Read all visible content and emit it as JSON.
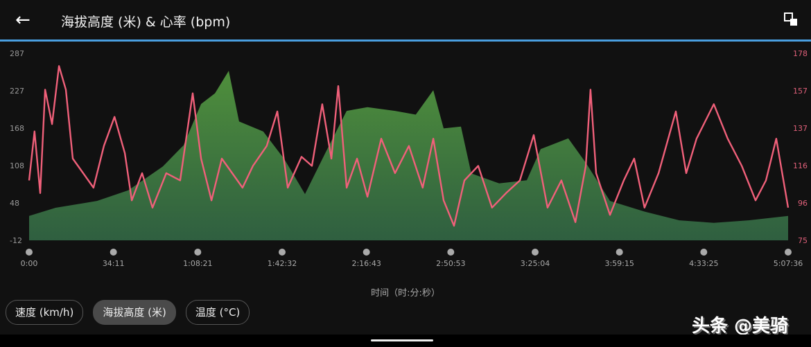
{
  "header": {
    "title": "海拔高度 (米) & 心率 (bpm)",
    "back_icon": "arrow-left",
    "expand_icon": "expand"
  },
  "colors": {
    "accent": "#4a9fe0",
    "heart_rate": "#f0607a",
    "elevation_top": "#4f8f3c",
    "elevation_bottom": "#2f5f40"
  },
  "chart_data": {
    "type": "area",
    "title": "海拔高度 (米) & 心率 (bpm)",
    "xlabel": "时间（时:分:秒）",
    "x_unit": "minutes",
    "xlim": [
      0,
      307.6
    ],
    "x_ticks": [
      "0:00",
      "34:11",
      "1:08:21",
      "1:42:32",
      "2:16:43",
      "2:50:53",
      "3:25:04",
      "3:59:15",
      "4:33:25",
      "5:07:36"
    ],
    "y_left": {
      "label": "海拔高度 (米)",
      "ticks": [
        "287",
        "227",
        "168",
        "108",
        "48",
        "-12"
      ],
      "ylim": [
        -12,
        287
      ]
    },
    "y_right": {
      "label": "心率 (bpm)",
      "ticks": [
        "178",
        "157",
        "137",
        "116",
        "96",
        "75"
      ],
      "ylim": [
        75,
        178
      ]
    },
    "grid": false,
    "series": [
      {
        "name": "海拔高度 (米)",
        "type": "area",
        "axis": "left",
        "x": [
          0,
          10.7,
          27.5,
          40.2,
          54.2,
          62.6,
          69.7,
          75.3,
          80.9,
          85.1,
          94.9,
          103.4,
          111.8,
          120.2,
          128.7,
          137.1,
          148.3,
          156.7,
          163.8,
          168,
          175,
          179.2,
          190.5,
          201.7,
          207.3,
          218.5,
          225.6,
          235.4,
          249.4,
          263.5,
          277.5,
          291.6,
          307.6
        ],
        "y": [
          27,
          40,
          51,
          68,
          106,
          140,
          206,
          223,
          259,
          178,
          162,
          118,
          62,
          129,
          195,
          201,
          195,
          189,
          228,
          167,
          170,
          95,
          79,
          84,
          134,
          151,
          112,
          51,
          34,
          20,
          16,
          20,
          27
        ]
      },
      {
        "name": "心率 (bpm)",
        "type": "line",
        "axis": "right",
        "x": [
          0,
          2.2,
          4.5,
          6.5,
          9.3,
          12.1,
          14.9,
          17.7,
          21.9,
          26.1,
          30.3,
          34.6,
          38.8,
          41.6,
          45.8,
          50,
          55.6,
          61.2,
          66.3,
          69.7,
          73.9,
          78.1,
          82.3,
          86.5,
          90.7,
          96.3,
          100.6,
          104.8,
          110.4,
          114.6,
          118.8,
          122.5,
          125.3,
          128.7,
          132.9,
          137.1,
          142.7,
          148.3,
          153.9,
          159.5,
          163.8,
          168,
          172.2,
          176.4,
          182,
          187.6,
          193.3,
          198.9,
          204.5,
          210.1,
          215.7,
          221.4,
          225.6,
          227.5,
          229.8,
          235.4,
          241,
          245.2,
          249.4,
          255.1,
          262.1,
          266.3,
          270.5,
          277.5,
          283.1,
          288.8,
          294.4,
          298.6,
          302.8,
          307.6
        ],
        "y": [
          108,
          135,
          101,
          158,
          139,
          171,
          158,
          120,
          112,
          104,
          127,
          143,
          123,
          97,
          112,
          93,
          112,
          108,
          156,
          120,
          97,
          120,
          112,
          104,
          116,
          127,
          146,
          104,
          121,
          116,
          150,
          120,
          160,
          104,
          120,
          99,
          131,
          112,
          127,
          104,
          131,
          97,
          83,
          108,
          116,
          93,
          101,
          108,
          133,
          93,
          108,
          85,
          116,
          158,
          112,
          89,
          108,
          120,
          93,
          112,
          146,
          112,
          131,
          150,
          131,
          116,
          97,
          108,
          131,
          93
        ]
      }
    ]
  },
  "chips": [
    {
      "label": "速度 (km/h)",
      "active": false
    },
    {
      "label": "海拔高度 (米)",
      "active": true
    },
    {
      "label": "温度 (°C)",
      "active": false
    }
  ],
  "watermark": "头条 @美骑"
}
